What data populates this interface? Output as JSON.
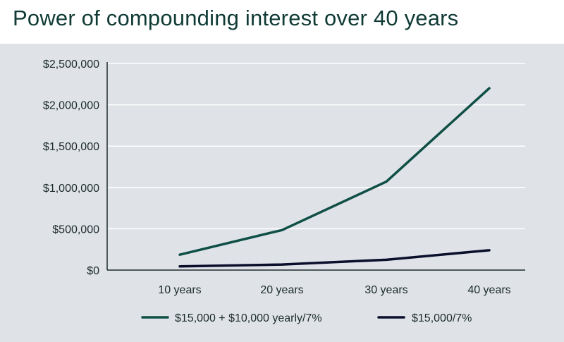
{
  "chart_data": {
    "type": "line",
    "title": "Power of compounding interest over 40 years",
    "categories": [
      "10 years",
      "20 years",
      "30 years",
      "40 years"
    ],
    "series": [
      {
        "name": "$15,000 + $10,000 yearly/7%",
        "color": "#0f4f45",
        "values": [
          186000,
          484000,
          1070000,
          2200000
        ]
      },
      {
        "name": "$15,000/7%",
        "color": "#0a0f2c",
        "values": [
          45000,
          67000,
          125000,
          240000
        ]
      }
    ],
    "y_ticks": [
      0,
      500000,
      1000000,
      1500000,
      2000000,
      2500000
    ],
    "y_tick_labels": [
      "$0",
      "$500,000",
      "$1,000,000",
      "$1,500,000",
      "$2,000,000",
      "$2,500,000"
    ],
    "ylim": [
      0,
      2500000
    ],
    "grid": true,
    "legend": "bottom"
  }
}
